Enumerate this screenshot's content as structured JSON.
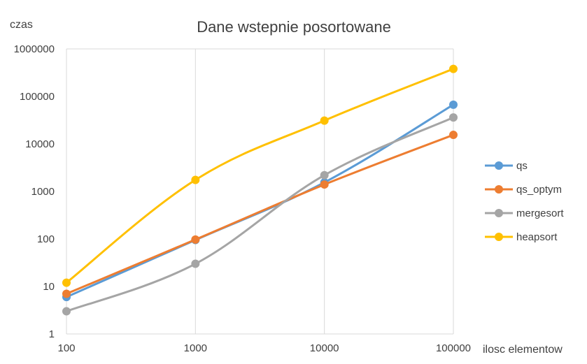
{
  "chart_data": {
    "type": "line",
    "title": "Dane wstepnie posortowane",
    "xlabel": "ilosc elementow",
    "ylabel": "czas",
    "x_scale": "log",
    "y_scale": "log",
    "x": [
      100,
      1000,
      10000,
      100000
    ],
    "x_tick_labels": [
      "100",
      "1000",
      "10000",
      "100000"
    ],
    "y_ticks": [
      1,
      10,
      100,
      1000,
      10000,
      100000,
      1000000
    ],
    "y_tick_labels": [
      "1",
      "10",
      "100",
      "1000",
      "10000",
      "100000",
      "1000000"
    ],
    "xlim": [
      100,
      100000
    ],
    "ylim": [
      1,
      1000000
    ],
    "grid": "vertical",
    "legend_position": "right",
    "series": [
      {
        "name": "qs",
        "color": "#5b9bd5",
        "values": [
          6,
          95,
          1550,
          67000
        ]
      },
      {
        "name": "qs_optym",
        "color": "#ed7d31",
        "values": [
          7,
          97,
          1400,
          15500
        ]
      },
      {
        "name": "mergesort",
        "color": "#a5a5a5",
        "values": [
          3,
          30,
          2200,
          36000
        ]
      },
      {
        "name": "heapsort",
        "color": "#ffc000",
        "values": [
          12,
          1750,
          31000,
          380000
        ]
      }
    ]
  }
}
